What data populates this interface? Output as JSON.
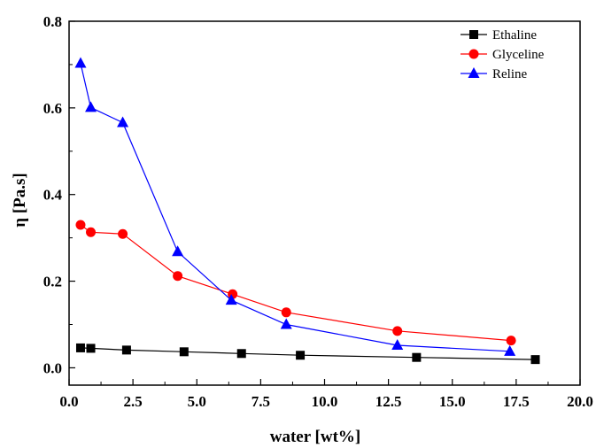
{
  "chart_data": {
    "type": "line",
    "xlabel": "water [wt%]",
    "ylabel": "η  [Pa.s]",
    "xlim": [
      0,
      20
    ],
    "ylim": [
      -0.04,
      0.8
    ],
    "xticks": [
      "0.0",
      "2.5",
      "5.0",
      "7.5",
      "10.0",
      "12.5",
      "15.0",
      "17.5",
      "20.0"
    ],
    "yticks": [
      "0.0",
      "0.2",
      "0.4",
      "0.6",
      "0.8"
    ],
    "legend": {
      "position": "top-right"
    },
    "series": [
      {
        "name": "Ethaline",
        "marker": "square",
        "color": "#000000",
        "x": [
          0.45,
          0.85,
          2.25,
          4.5,
          6.75,
          9.05,
          13.6,
          18.25
        ],
        "y": [
          0.046,
          0.045,
          0.041,
          0.037,
          0.033,
          0.029,
          0.024,
          0.019
        ]
      },
      {
        "name": "Glyceline",
        "marker": "circle",
        "color": "#ff0000",
        "x": [
          0.45,
          0.85,
          2.1,
          4.25,
          6.4,
          8.5,
          12.85,
          17.3
        ],
        "y": [
          0.33,
          0.313,
          0.309,
          0.212,
          0.17,
          0.128,
          0.085,
          0.063
        ]
      },
      {
        "name": "Reline",
        "marker": "triangle",
        "color": "#0000ff",
        "x": [
          0.45,
          0.85,
          2.1,
          4.25,
          6.35,
          8.5,
          12.85,
          17.25
        ],
        "y": [
          0.703,
          0.601,
          0.566,
          0.268,
          0.156,
          0.1,
          0.052,
          0.038
        ]
      }
    ]
  }
}
